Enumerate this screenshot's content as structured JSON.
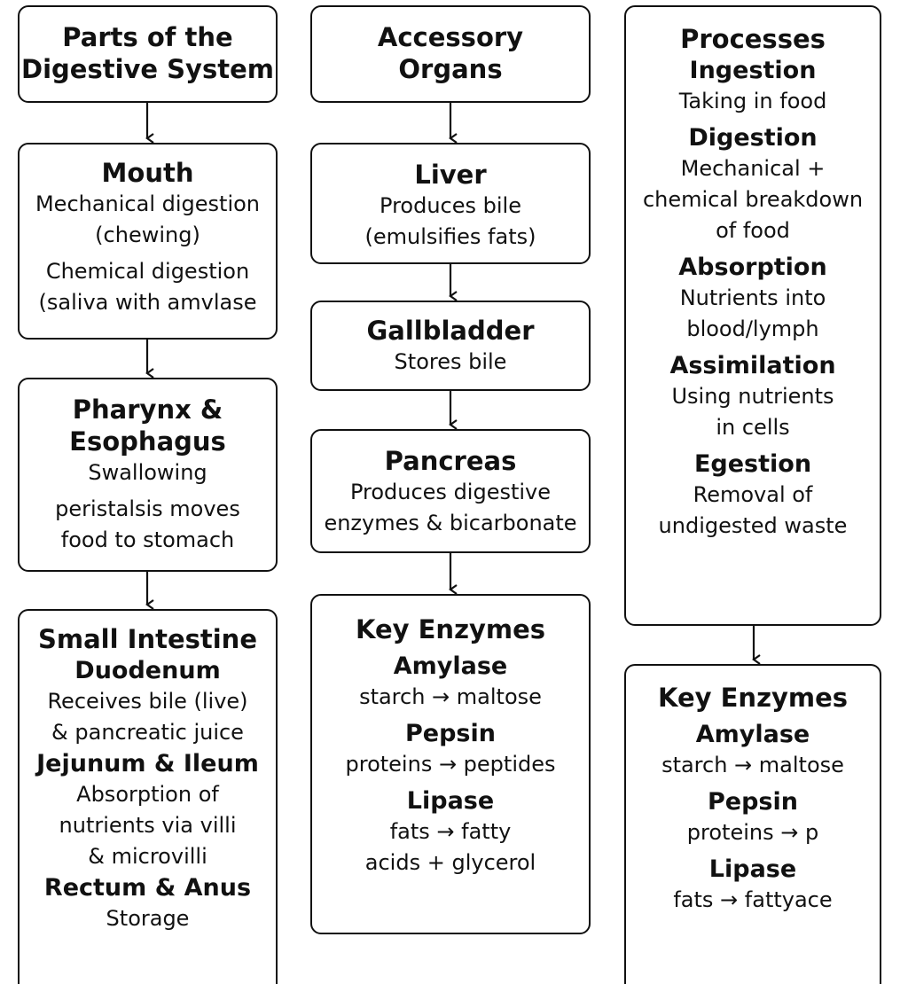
{
  "col1": {
    "header": {
      "line1": "Parts of the",
      "line2": "Digestive System"
    },
    "mouth": {
      "title": "Mouth",
      "d1": "Mechanical digestion",
      "d2": "(chewing)",
      "d3": "Chemical digestion",
      "d4": "(saliva with amvlase"
    },
    "pharynx": {
      "title1": "Pharynx &",
      "title2": "Esophagus",
      "d1": "Swallowing",
      "d2": "peristalsis moves",
      "d3": "food to stomach"
    },
    "intestine": {
      "title": "Small Intestine",
      "duodenum": {
        "title": "Duodenum",
        "d1": "Receives bile (live)",
        "d2": "& pancreatic juice"
      },
      "jejunum": {
        "title": "Jejunum & Ileum",
        "d1": "Absorption of",
        "d2": "nutrients via villi",
        "d3": "& microvilli"
      },
      "rectum": {
        "title": "Rectum & Anus",
        "d1": "Storage"
      }
    }
  },
  "col2": {
    "header": {
      "line1": "Accessory",
      "line2": "Organs"
    },
    "liver": {
      "title": "Liver",
      "d1": "Produces bile",
      "d2": "(emulsifies fats)"
    },
    "gallbladder": {
      "title": "Gallbladder",
      "d1": "Stores bile"
    },
    "pancreas": {
      "title": "Pancreas",
      "d1": "Produces digestive",
      "d2": "enzymes & bicarbonate"
    },
    "enzymes": {
      "title": "Key Enzymes",
      "amylase": {
        "title": "Amylase",
        "d1": "starch →  maltose"
      },
      "pepsin": {
        "title": "Pepsin",
        "d1": "proteins → peptides"
      },
      "lipase": {
        "title": "Lipase",
        "d1": "fats → fatty",
        "d2": "acids + glycerol"
      }
    }
  },
  "col3": {
    "processes": {
      "title": "Processes",
      "ingestion": {
        "title": "Ingestion",
        "d1": "Taking in food"
      },
      "digestion": {
        "title": "Digestion",
        "d1": "Mechanical +",
        "d2": "chemical breakdown",
        "d3": "of food"
      },
      "absorption": {
        "title": "Absorption",
        "d1": "Nutrients into",
        "d2": "blood/lymph"
      },
      "assimilation": {
        "title": "Assimilation",
        "d1": "Using nutrients",
        "d2": "in cells"
      },
      "egestion": {
        "title": "Egestion",
        "d1": "Removal of",
        "d2": "undigested waste"
      }
    },
    "enzymes": {
      "title": "Key Enzymes",
      "amylase": {
        "title": "Amylase",
        "d1": "starch → maltose"
      },
      "pepsin": {
        "title": "Pepsin",
        "d1": "proteins → p"
      },
      "lipase": {
        "title": "Lipase",
        "d1": "fats → fattyace"
      }
    }
  }
}
